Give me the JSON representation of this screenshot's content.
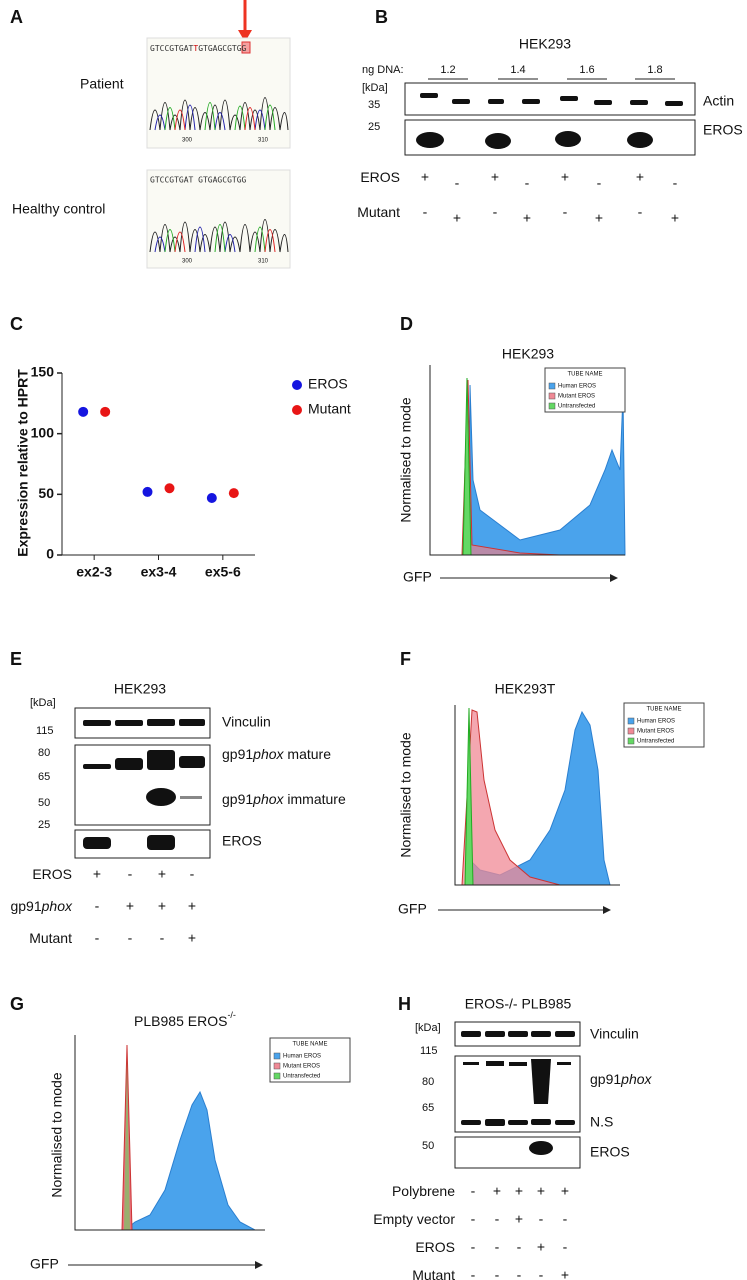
{
  "panels": {
    "A": {
      "label": "A",
      "patient": "Patient",
      "control": "Healthy control",
      "seq_patient_left": "GTCCGTGAT",
      "seq_patient_mut": "T",
      "seq_patient_right": "GTGAGCGTGG",
      "seq_control": "GTCCGTGAT GTGAGCGTGG",
      "pos1": "300",
      "pos2": "310"
    },
    "B": {
      "label": "B",
      "title": "HEK293",
      "ng": "ng DNA:",
      "doses": [
        "1.2",
        "1.4",
        "1.6",
        "1.8"
      ],
      "kda": "[kDa]",
      "mw": [
        "35",
        "25"
      ],
      "bands": [
        "Actin",
        "EROS"
      ],
      "rows": [
        {
          "label": "EROS",
          "signs": [
            "+",
            "-",
            "+",
            "-",
            "+",
            "-",
            "+",
            "-"
          ]
        },
        {
          "label": "Mutant",
          "signs": [
            "-",
            "+",
            "-",
            "+",
            "-",
            "+",
            "-",
            "+"
          ]
        }
      ]
    },
    "C": {
      "label": "C"
    },
    "D": {
      "label": "D",
      "title": "HEK293",
      "ylabel": "Normalised to mode",
      "xlabel": "GFP",
      "legend_title": "TUBE NAME",
      "legend": [
        "Human EROS",
        "Mutant EROS",
        "Untransfected"
      ]
    },
    "E": {
      "label": "E",
      "title": "HEK293",
      "kda": "[kDa]",
      "mw": [
        "115",
        "80",
        "65",
        "50",
        "25"
      ],
      "vinculin": "Vinculin",
      "gp_prefix": "gp91",
      "gp_italic": "phox",
      "mature": " mature",
      "immature": " immature",
      "eros": "EROS",
      "rows": [
        {
          "label": "EROS",
          "signs": [
            "+",
            "-",
            "+",
            "-"
          ]
        },
        {
          "label": "gp91",
          "label_italic": "phox",
          "signs": [
            "-",
            "+",
            "+",
            "+"
          ]
        },
        {
          "label": "Mutant",
          "signs": [
            "-",
            "-",
            "-",
            "+"
          ]
        }
      ]
    },
    "F": {
      "label": "F",
      "title": "HEK293T",
      "ylabel": "Normalised to mode",
      "xlabel": "GFP",
      "legend_title": "TUBE NAME",
      "legend": [
        "Human EROS",
        "Mutant EROS",
        "Untransfected"
      ]
    },
    "G": {
      "label": "G",
      "title": "PLB985 EROS",
      "title_sup": "-/-",
      "ylabel": "Normalised to mode",
      "xlabel": "GFP",
      "legend_title": "TUBE NAME",
      "legend": [
        "Human EROS",
        "Mutant EROS",
        "Untransfected"
      ]
    },
    "H": {
      "label": "H",
      "title": "EROS-/- PLB985",
      "kda": "[kDa]",
      "mw": [
        "115",
        "80",
        "65",
        "50"
      ],
      "vinculin": "Vinculin",
      "gp_prefix": "gp91",
      "gp_italic": "phox",
      "ns": "N.S",
      "eros": "EROS",
      "rows": [
        {
          "label": "Polybrene",
          "signs": [
            "-",
            "+",
            "+",
            "+",
            "+"
          ]
        },
        {
          "label": "Empty vector",
          "signs": [
            "-",
            "-",
            "+",
            "-",
            "-"
          ]
        },
        {
          "label": "EROS",
          "signs": [
            "-",
            "-",
            "-",
            "+",
            "-"
          ]
        },
        {
          "label": "Mutant",
          "signs": [
            "-",
            "-",
            "-",
            "-",
            "+"
          ]
        }
      ]
    }
  },
  "chart_data": {
    "type": "scatter",
    "ylabel": "Expression relative to HPRT",
    "categories": [
      "ex2-3",
      "ex3-4",
      "ex5-6"
    ],
    "series": [
      {
        "name": "EROS",
        "color": "#1515e0",
        "values": [
          118,
          52,
          47
        ]
      },
      {
        "name": "Mutant",
        "color": "#e81515",
        "values": [
          118,
          55,
          51
        ]
      }
    ],
    "ylim": [
      0,
      150
    ],
    "yticks": [
      0,
      50,
      100,
      150
    ]
  }
}
